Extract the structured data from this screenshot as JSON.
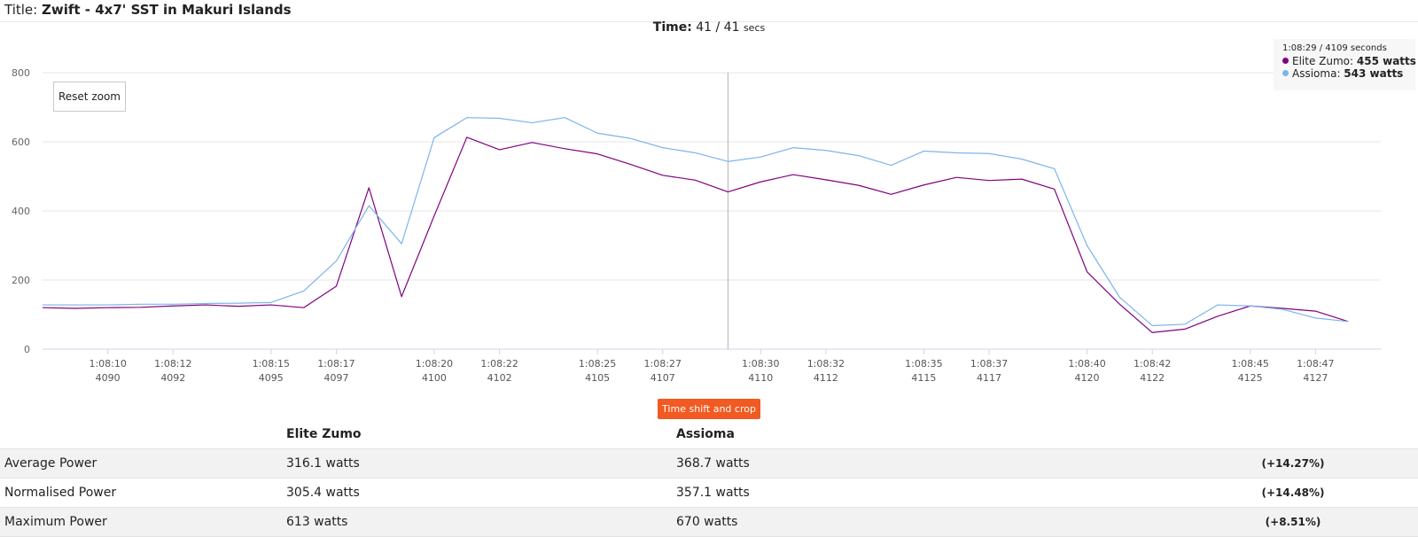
{
  "header": {
    "title_label": "Title:",
    "title": "Zwift - 4x7' SST in Makuri Islands"
  },
  "time": {
    "label": "Time:",
    "value": "41 / 41",
    "unit": "secs"
  },
  "reset_zoom_label": "Reset zoom",
  "time_shift_label": "Time shift and crop",
  "tooltip": {
    "header": "1:08:29 / 4109 seconds",
    "items": [
      {
        "name": "Elite Zumo",
        "value": "455 watts"
      },
      {
        "name": "Assioma",
        "value": "543 watts"
      }
    ]
  },
  "chart_data": {
    "type": "line",
    "ylim": [
      0,
      800
    ],
    "yticks": [
      "0",
      "200",
      "400",
      "600",
      "800"
    ],
    "xlim": [
      4088,
      4129
    ],
    "xticks": [
      {
        "x": 4090,
        "time": "1:08:10",
        "sec": "4090"
      },
      {
        "x": 4092,
        "time": "1:08:12",
        "sec": "4092"
      },
      {
        "x": 4095,
        "time": "1:08:15",
        "sec": "4095"
      },
      {
        "x": 4097,
        "time": "1:08:17",
        "sec": "4097"
      },
      {
        "x": 4100,
        "time": "1:08:20",
        "sec": "4100"
      },
      {
        "x": 4102,
        "time": "1:08:22",
        "sec": "4102"
      },
      {
        "x": 4105,
        "time": "1:08:25",
        "sec": "4105"
      },
      {
        "x": 4107,
        "time": "1:08:27",
        "sec": "4107"
      },
      {
        "x": 4110,
        "time": "1:08:30",
        "sec": "4110"
      },
      {
        "x": 4112,
        "time": "1:08:32",
        "sec": "4112"
      },
      {
        "x": 4115,
        "time": "1:08:35",
        "sec": "4115"
      },
      {
        "x": 4117,
        "time": "1:08:37",
        "sec": "4117"
      },
      {
        "x": 4120,
        "time": "1:08:40",
        "sec": "4120"
      },
      {
        "x": 4122,
        "time": "1:08:42",
        "sec": "4122"
      },
      {
        "x": 4125,
        "time": "1:08:45",
        "sec": "4125"
      },
      {
        "x": 4127,
        "time": "1:08:47",
        "sec": "4127"
      }
    ],
    "crosshair_x": 4109,
    "x": [
      4088,
      4089,
      4090,
      4091,
      4092,
      4093,
      4094,
      4095,
      4096,
      4097,
      4098,
      4099,
      4100,
      4101,
      4102,
      4103,
      4104,
      4105,
      4106,
      4107,
      4108,
      4109,
      4110,
      4111,
      4112,
      4113,
      4114,
      4115,
      4116,
      4117,
      4118,
      4119,
      4120,
      4121,
      4122,
      4123,
      4124,
      4125,
      4126,
      4127,
      4128
    ],
    "series": [
      {
        "name": "Elite Zumo",
        "color": "#800080",
        "values": [
          120,
          118,
          120,
          121,
          125,
          128,
          124,
          128,
          120,
          182,
          467,
          152,
          386,
          613,
          577,
          598,
          580,
          565,
          535,
          503,
          489,
          455,
          484,
          505,
          490,
          474,
          448,
          475,
          497,
          488,
          492,
          463,
          224,
          130,
          48,
          58,
          95,
          125,
          118,
          110,
          80
        ]
      },
      {
        "name": "Assioma",
        "color": "#7cb5ec",
        "values": [
          128,
          128,
          128,
          130,
          130,
          132,
          133,
          135,
          168,
          255,
          415,
          305,
          612,
          670,
          668,
          655,
          670,
          625,
          610,
          583,
          568,
          543,
          556,
          583,
          575,
          560,
          532,
          573,
          568,
          566,
          550,
          522,
          300,
          150,
          68,
          72,
          128,
          125,
          115,
          90,
          80
        ]
      }
    ]
  },
  "stats": {
    "headers": [
      "",
      "Elite Zumo",
      "Assioma",
      ""
    ],
    "rows": [
      {
        "label": "Average Power",
        "a": "316.1 watts",
        "b": "368.7 watts",
        "delta": "(+14.27%)"
      },
      {
        "label": "Normalised Power",
        "a": "305.4 watts",
        "b": "357.1 watts",
        "delta": "(+14.48%)"
      },
      {
        "label": "Maximum Power",
        "a": "613 watts",
        "b": "670 watts",
        "delta": "(+8.51%)"
      }
    ]
  }
}
